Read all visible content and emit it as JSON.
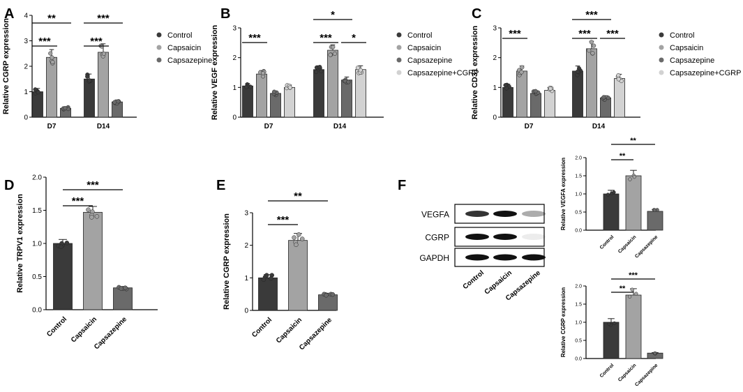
{
  "colors": {
    "Control": "#3a3a3a",
    "Capsaicin": "#a3a3a3",
    "Capsazepine": "#6a6a6a",
    "Capsazepine+CGRP": "#d2d2d2"
  },
  "chart_data": [
    {
      "panel": "A",
      "type": "bar",
      "ylabel": "Relative CGRP expression",
      "ylim": [
        0,
        4
      ],
      "yticks": [
        0,
        1,
        2,
        3,
        4
      ],
      "categories": [
        "D7",
        "D14"
      ],
      "series": [
        {
          "name": "Control",
          "values": [
            1.0,
            1.5
          ]
        },
        {
          "name": "Capsaicin",
          "values": [
            2.35,
            2.55
          ]
        },
        {
          "name": "Capsazepine",
          "values": [
            0.35,
            0.6
          ]
        }
      ],
      "significance": [
        {
          "label": "***",
          "group": 0,
          "from": 0,
          "to": 1
        },
        {
          "label": "**",
          "group": 0,
          "from": 0,
          "to": 2
        },
        {
          "label": "***",
          "group": 1,
          "from": 0,
          "to": 1
        },
        {
          "label": "***",
          "group": 1,
          "from": 0,
          "to": 2
        }
      ]
    },
    {
      "panel": "B",
      "type": "bar",
      "ylabel": "Relative VEGF expression",
      "ylim": [
        0,
        3
      ],
      "yticks": [
        0,
        1,
        2,
        3
      ],
      "categories": [
        "D7",
        "D14"
      ],
      "series": [
        {
          "name": "Control",
          "values": [
            1.05,
            1.6
          ]
        },
        {
          "name": "Capsaicin",
          "values": [
            1.45,
            2.25
          ]
        },
        {
          "name": "Capsazepine",
          "values": [
            0.8,
            1.25
          ]
        },
        {
          "name": "Capsazepine+CGRP",
          "values": [
            1.0,
            1.6
          ]
        }
      ],
      "significance": [
        {
          "label": "***",
          "group": 0,
          "from": 0,
          "to": 1
        },
        {
          "label": "***",
          "group": 1,
          "from": 0,
          "to": 1
        },
        {
          "label": "*",
          "group": 1,
          "from": 0,
          "to": 2
        },
        {
          "label": "*",
          "group": 1,
          "from": 2,
          "to": 3
        }
      ]
    },
    {
      "panel": "C",
      "type": "bar",
      "ylabel": "Relative CD31 expression",
      "ylim": [
        0,
        3
      ],
      "yticks": [
        0,
        1,
        2,
        3
      ],
      "categories": [
        "D7",
        "D14"
      ],
      "series": [
        {
          "name": "Control",
          "values": [
            1.0,
            1.55
          ]
        },
        {
          "name": "Capsaicin",
          "values": [
            1.55,
            2.3
          ]
        },
        {
          "name": "Capsazepine",
          "values": [
            0.8,
            0.65
          ]
        },
        {
          "name": "Capsazepine+CGRP",
          "values": [
            0.9,
            1.3
          ]
        }
      ],
      "significance": [
        {
          "label": "***",
          "group": 0,
          "from": 0,
          "to": 1
        },
        {
          "label": "***",
          "group": 1,
          "from": 0,
          "to": 1
        },
        {
          "label": "***",
          "group": 1,
          "from": 0,
          "to": 2
        },
        {
          "label": "***",
          "group": 1,
          "from": 2,
          "to": 3
        }
      ]
    },
    {
      "panel": "D",
      "type": "bar",
      "ylabel": "Relative TRPV1 expression",
      "ylim": [
        0,
        2.0
      ],
      "yticks": [
        0,
        0.5,
        1.0,
        1.5,
        2.0
      ],
      "categories": [
        "Control",
        "Capsaicin",
        "Capsazepine"
      ],
      "values": [
        1.0,
        1.47,
        0.33
      ],
      "significance": [
        {
          "label": "***",
          "from": 0,
          "to": 1
        },
        {
          "label": "***",
          "from": 0,
          "to": 2
        }
      ]
    },
    {
      "panel": "E",
      "type": "bar",
      "ylabel": "Relative CGRP expression",
      "ylim": [
        0,
        3
      ],
      "yticks": [
        0,
        1,
        2,
        3
      ],
      "categories": [
        "Control",
        "Capsaicin",
        "Capsazepine"
      ],
      "values": [
        1.0,
        2.15,
        0.48
      ],
      "significance": [
        {
          "label": "***",
          "from": 0,
          "to": 1
        },
        {
          "label": "**",
          "from": 0,
          "to": 2
        }
      ]
    },
    {
      "panel": "F-top",
      "type": "bar",
      "ylabel": "Relative VEGFA expression",
      "ylim": [
        0,
        2.0
      ],
      "yticks": [
        0.0,
        0.5,
        1.0,
        1.5,
        2.0
      ],
      "categories": [
        "Control",
        "Capsaicin",
        "Capsazepine"
      ],
      "values": [
        1.0,
        1.5,
        0.52
      ],
      "significance": [
        {
          "label": "**",
          "from": 0,
          "to": 1
        },
        {
          "label": "**",
          "from": 0,
          "to": 2
        }
      ]
    },
    {
      "panel": "F-bottom",
      "type": "bar",
      "ylabel": "Relative CGRP expression",
      "ylim": [
        0,
        2.0
      ],
      "yticks": [
        0.0,
        0.5,
        1.0,
        1.5,
        2.0
      ],
      "categories": [
        "Control",
        "Capsaicin",
        "Capsazepine"
      ],
      "values": [
        1.0,
        1.75,
        0.15
      ],
      "significance": [
        {
          "label": "**",
          "from": 0,
          "to": 1
        },
        {
          "label": "***",
          "from": 0,
          "to": 2
        }
      ]
    }
  ],
  "panel_labels": [
    "A",
    "B",
    "C",
    "D",
    "E",
    "F"
  ],
  "legend_A": [
    "Control",
    "Capsaicin",
    "Capsazepine"
  ],
  "legend_BC": [
    "Control",
    "Capsaicin",
    "Capsazepine",
    "Capsazepine+CGRP"
  ],
  "western_blot": {
    "rows": [
      "VEGFA",
      "CGRP",
      "GAPDH"
    ],
    "lanes": [
      "Control",
      "Capsaicin",
      "Capsazepine"
    ],
    "intensity": [
      [
        0.85,
        1.0,
        0.35
      ],
      [
        1.0,
        1.0,
        0.08
      ],
      [
        1.0,
        1.0,
        1.0
      ]
    ]
  }
}
